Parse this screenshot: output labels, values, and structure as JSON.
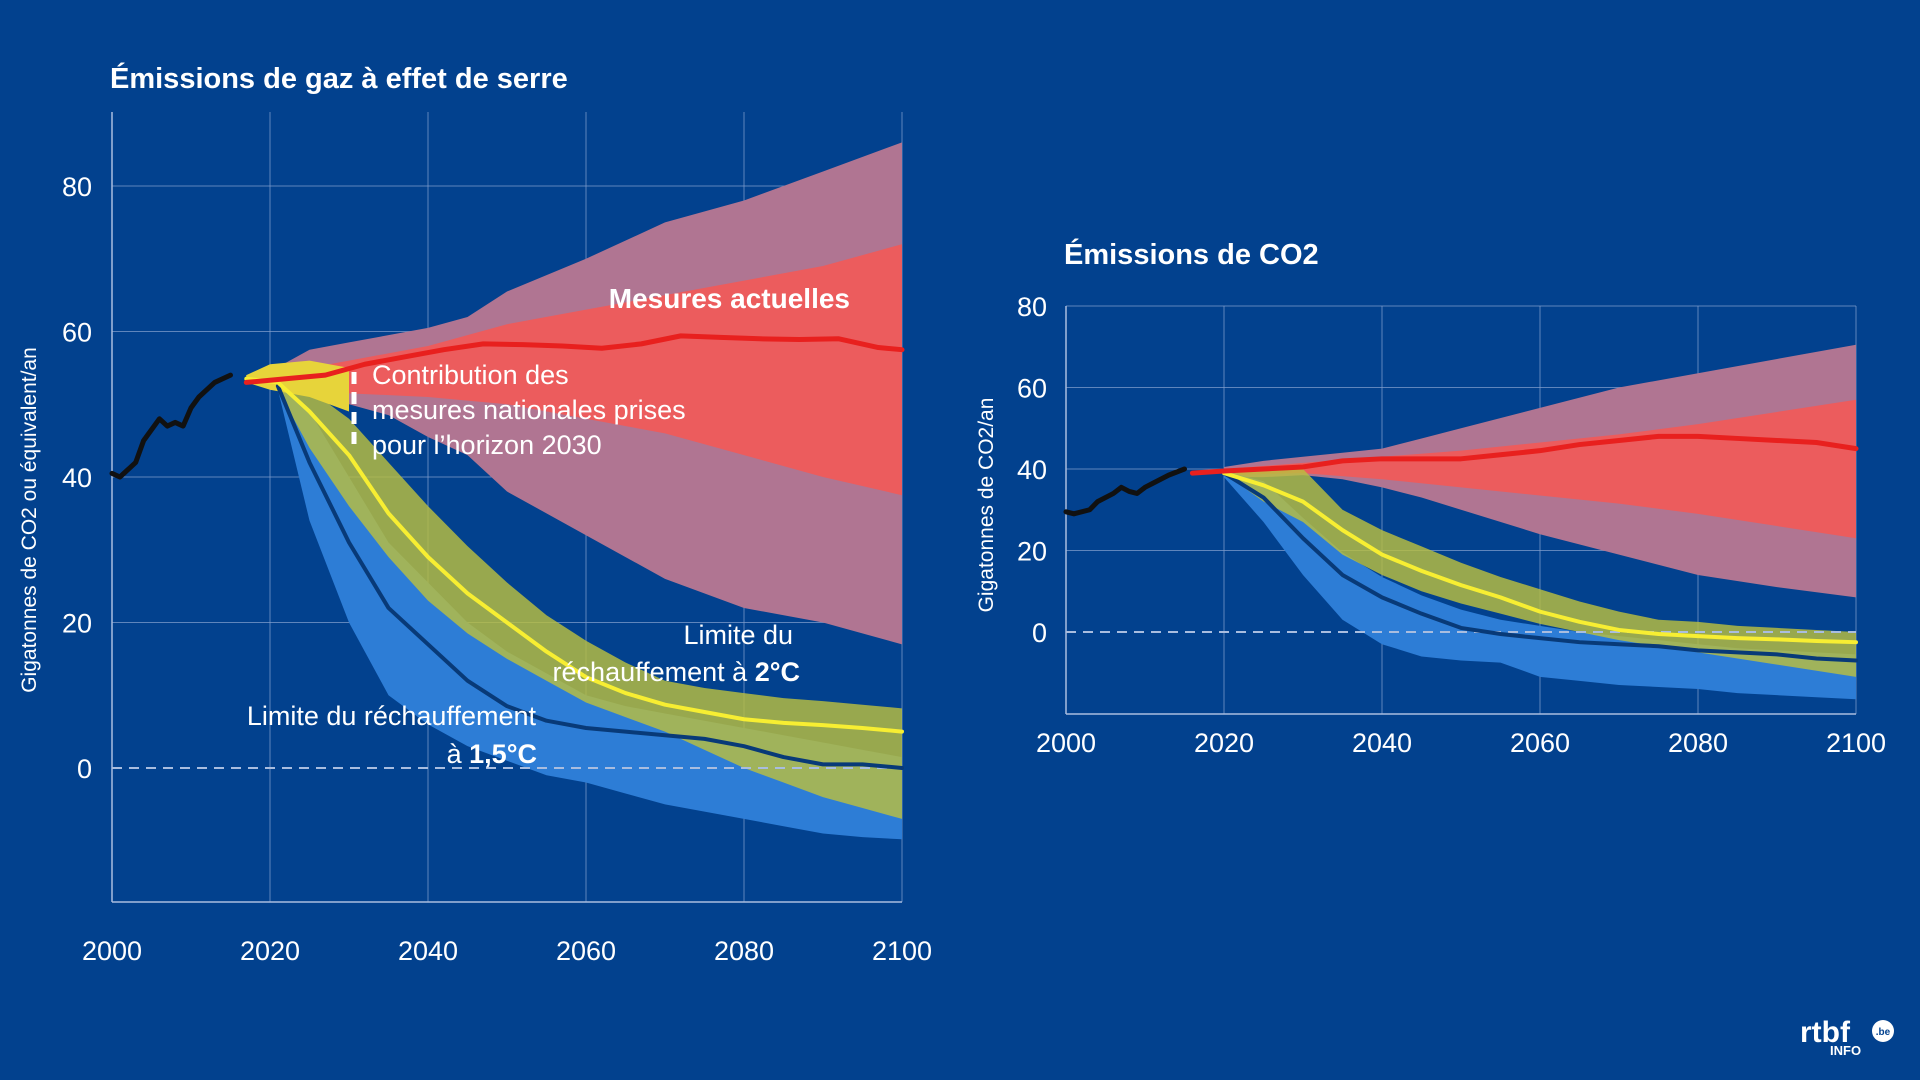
{
  "charts": {
    "left": {
      "title": "Émissions de gaz à effet de serre",
      "ylabel": "Gigatonnes de CO2 ou équivalent/an",
      "xticks": [
        "2000",
        "2020",
        "2040",
        "2060",
        "2080",
        "2100"
      ],
      "yticks": [
        "80",
        "60",
        "40",
        "20",
        "0"
      ],
      "annotations": {
        "mesures": "Mesures actuelles",
        "contribution_1": "Contribution des",
        "contribution_2": "mesures nationales prises",
        "contribution_3": "pour l’horizon 2030",
        "limit2_1": "Limite du",
        "limit2_2": "réchauffement à ",
        "limit2_bold": "2°C",
        "limit15_1": "Limite du réchauffement",
        "limit15_2": "à ",
        "limit15_bold": "1,5°C"
      }
    },
    "right": {
      "title": "Émissions de CO2",
      "ylabel": "Gigatonnes de CO2/an",
      "xticks": [
        "2000",
        "2020",
        "2040",
        "2060",
        "2080",
        "2100"
      ],
      "yticks": [
        "80",
        "60",
        "40",
        "20",
        "0"
      ]
    }
  },
  "logo": {
    "brand": "rtbf",
    "badge": ".be",
    "sub": "INFO"
  },
  "colors": {
    "background": "#02418e",
    "historical": "#111111",
    "current_policies_line": "#e8201e",
    "current_policies_inner": "#ec5c5d",
    "current_policies_outer": "#b07592",
    "ndc_band": "#e7d43a",
    "limit2_line": "#f7ee32",
    "limit2_band": "#b9bf3f",
    "limit15_band": "#2d7dd6",
    "limit15_line": "#083a78",
    "overlap": "#5e9cb7"
  },
  "chart_data": [
    {
      "type": "line",
      "title": "Émissions de gaz à effet de serre",
      "xlabel": "",
      "ylabel": "Gigatonnes de CO2 ou équivalent/an",
      "xlim": [
        2000,
        2100
      ],
      "ylim": [
        -18,
        88
      ],
      "grid": true,
      "series": [
        {
          "name": "",
          "role": "historical",
          "x": [
            2000,
            2001,
            2003,
            2004,
            2006,
            2007,
            2008,
            2009,
            2010,
            2011,
            2013,
            2015
          ],
          "y": [
            40.5,
            40,
            42,
            45,
            48,
            47,
            47.5,
            47,
            49.5,
            51,
            53,
            54
          ]
        },
        {
          "name": "Mesures actuelles",
          "role": "current_line",
          "x": [
            2017,
            2022,
            2027,
            2032,
            2037,
            2042,
            2047,
            2052,
            2057,
            2062,
            2067,
            2072,
            2077,
            2082,
            2087,
            2092,
            2097,
            2100
          ],
          "y": [
            53,
            53.5,
            54,
            55.5,
            56.5,
            57.5,
            58.3,
            58.2,
            58,
            57.7,
            58.3,
            59.4,
            59.2,
            59,
            58.9,
            59,
            57.8,
            57.5
          ]
        },
        {
          "name": "",
          "role": "current_outer_range",
          "x": [
            2020,
            2025,
            2030,
            2035,
            2040,
            2045,
            2050,
            2060,
            2070,
            2080,
            2090,
            2100
          ],
          "upper": [
            54.5,
            57.5,
            58.5,
            59.5,
            60.5,
            62,
            65.5,
            70,
            75,
            78,
            82,
            86
          ],
          "lower": [
            52,
            51.5,
            50,
            48.5,
            45.5,
            43,
            38,
            32,
            26,
            22,
            20,
            17
          ]
        },
        {
          "name": "",
          "role": "current_inner_range",
          "x": [
            2020,
            2030,
            2040,
            2050,
            2060,
            2070,
            2080,
            2090,
            2100
          ],
          "upper": [
            54,
            56,
            58,
            61,
            63,
            65,
            67,
            69,
            72
          ],
          "lower": [
            52.5,
            51.5,
            51,
            50,
            48,
            46,
            43,
            40,
            37.5
          ]
        },
        {
          "name": "",
          "role": "ndc_range_2030",
          "x": [
            2017,
            2020,
            2025,
            2030
          ],
          "upper": [
            54,
            55.5,
            56,
            55
          ],
          "lower": [
            53,
            52,
            51,
            49
          ]
        },
        {
          "name": "Limite du réchauffement à 2°C",
          "role": "limit2_line",
          "x": [
            2017,
            2021,
            2025,
            2030,
            2035,
            2040,
            2045,
            2050,
            2055,
            2060,
            2065,
            2070,
            2075,
            2080,
            2085,
            2090,
            2095,
            2100
          ],
          "y": [
            53.5,
            53,
            49,
            43,
            35,
            29,
            24,
            20,
            16,
            12.5,
            10.3,
            8.7,
            7.7,
            6.7,
            6.2,
            5.9,
            5.5,
            5
          ]
        },
        {
          "name": "",
          "role": "limit2_range",
          "x": [
            2017,
            2021,
            2025,
            2030,
            2035,
            2040,
            2045,
            2050,
            2055,
            2060,
            2065,
            2070,
            2075,
            2080,
            2085,
            2090,
            2095,
            2100
          ],
          "upper": [
            54,
            54,
            52,
            48,
            42,
            36,
            30.5,
            25.5,
            21,
            17.5,
            14.5,
            12,
            11,
            10.3,
            9.6,
            9.2,
            8.7,
            8.2
          ],
          "lower": [
            53,
            52,
            44,
            36,
            29,
            23,
            18.5,
            15,
            12,
            9,
            7,
            5,
            2.5,
            0,
            -2,
            -4,
            -5.5,
            -7
          ]
        },
        {
          "name": "Limite du réchauffement à 1,5°C",
          "role": "limit15_line",
          "x": [
            2021,
            2025,
            2030,
            2035,
            2040,
            2045,
            2050,
            2055,
            2060,
            2065,
            2070,
            2075,
            2080,
            2085,
            2090,
            2095,
            2100
          ],
          "y": [
            52.5,
            42,
            31,
            22,
            17,
            12,
            8.5,
            6.5,
            5.5,
            5,
            4.5,
            4,
            3,
            1.5,
            0.5,
            0.5,
            0
          ]
        },
        {
          "name": "",
          "role": "limit15_range",
          "x": [
            2021,
            2025,
            2030,
            2035,
            2040,
            2045,
            2050,
            2055,
            2060,
            2065,
            2070,
            2075,
            2080,
            2085,
            2090,
            2095,
            2100
          ],
          "upper": [
            53.5,
            49,
            40,
            31,
            25.5,
            20,
            16,
            13,
            10,
            8.5,
            7.5,
            6.5,
            5.5,
            4.5,
            3.5,
            2.5,
            1.5
          ],
          "lower": [
            52,
            34,
            20,
            10,
            6,
            3,
            1,
            -1,
            -2,
            -3.5,
            -5,
            -6,
            -7,
            -8,
            -9,
            -9.5,
            -9.8
          ]
        }
      ]
    },
    {
      "type": "line",
      "title": "Émissions de CO2",
      "xlabel": "",
      "ylabel": "Gigatonnes de CO2/an",
      "xlim": [
        2000,
        2100
      ],
      "ylim": [
        -20,
        80
      ],
      "grid": true,
      "series": [
        {
          "name": "",
          "role": "historical",
          "x": [
            2000,
            2001,
            2003,
            2004,
            2006,
            2007,
            2008,
            2009,
            2010,
            2011,
            2013,
            2015
          ],
          "y": [
            29.5,
            29,
            30,
            32,
            34,
            35.5,
            34.5,
            34,
            35.5,
            36.5,
            38.5,
            40
          ]
        },
        {
          "name": "",
          "role": "current_line",
          "x": [
            2016,
            2020,
            2030,
            2035,
            2040,
            2045,
            2050,
            2055,
            2060,
            2065,
            2070,
            2075,
            2080,
            2085,
            2090,
            2095,
            2100
          ],
          "y": [
            39,
            39.5,
            40.5,
            42,
            42.5,
            42.5,
            42.5,
            43.5,
            44.5,
            46,
            47,
            48,
            48,
            47.5,
            47,
            46.5,
            45
          ]
        },
        {
          "name": "",
          "role": "current_outer_range",
          "x": [
            2020,
            2025,
            2030,
            2035,
            2040,
            2045,
            2050,
            2060,
            2070,
            2080,
            2090,
            2100
          ],
          "upper": [
            40.5,
            42,
            43,
            44,
            45,
            47.5,
            50,
            55,
            60,
            63.5,
            67,
            70.5
          ],
          "lower": [
            38,
            38,
            38.5,
            37.5,
            35.5,
            33,
            30,
            24,
            19,
            14,
            11,
            8.5
          ]
        },
        {
          "name": "",
          "role": "current_inner_range",
          "x": [
            2020,
            2030,
            2040,
            2050,
            2060,
            2070,
            2080,
            2090,
            2100
          ],
          "upper": [
            40,
            41.5,
            43,
            44.5,
            46.5,
            48.5,
            51,
            54,
            57
          ],
          "lower": [
            38.5,
            39,
            37.5,
            35.5,
            33.5,
            31.5,
            29,
            26,
            23
          ]
        },
        {
          "name": "",
          "role": "limit2_line",
          "x": [
            2020,
            2025,
            2030,
            2035,
            2040,
            2045,
            2050,
            2055,
            2060,
            2065,
            2070,
            2075,
            2080,
            2085,
            2090,
            2095,
            2100
          ],
          "y": [
            39,
            36,
            32,
            25,
            19,
            15,
            11.5,
            8.5,
            5,
            2.5,
            0.5,
            -0.5,
            -1,
            -1.5,
            -1.8,
            -2.2,
            -2.5
          ]
        },
        {
          "name": "",
          "role": "limit2_range",
          "x": [
            2020,
            2025,
            2030,
            2035,
            2040,
            2045,
            2050,
            2055,
            2060,
            2065,
            2070,
            2075,
            2080,
            2085,
            2090,
            2095,
            2100
          ],
          "upper": [
            39.5,
            39.5,
            40,
            30,
            25,
            21,
            17,
            13.5,
            10.5,
            7.5,
            5,
            3,
            2.5,
            1.5,
            1,
            0.5,
            0
          ],
          "lower": [
            39,
            32,
            27,
            19,
            14,
            10,
            7,
            4.5,
            2,
            0,
            -2,
            -3.5,
            -5,
            -6.5,
            -8,
            -9.5,
            -11
          ]
        },
        {
          "name": "",
          "role": "limit15_line",
          "x": [
            2020,
            2025,
            2030,
            2035,
            2040,
            2045,
            2050,
            2055,
            2060,
            2065,
            2070,
            2075,
            2080,
            2085,
            2090,
            2095,
            2100
          ],
          "y": [
            39,
            33,
            23,
            14,
            8.5,
            4.5,
            1,
            -0.5,
            -1.5,
            -2.5,
            -3,
            -3.5,
            -4.5,
            -5,
            -5.5,
            -6.5,
            -7
          ]
        },
        {
          "name": "",
          "role": "limit15_range",
          "x": [
            2020,
            2025,
            2030,
            2035,
            2040,
            2045,
            2050,
            2055,
            2060,
            2065,
            2070,
            2075,
            2080,
            2085,
            2090,
            2095,
            2100
          ],
          "upper": [
            39.5,
            37,
            28,
            19.5,
            13.5,
            9,
            5.5,
            3,
            1.5,
            0,
            -1,
            -2,
            -3,
            -4,
            -4.5,
            -5,
            -5.5
          ],
          "lower": [
            38,
            27,
            14,
            3,
            -3,
            -6,
            -7,
            -7.5,
            -11,
            -12,
            -13,
            -13.5,
            -14,
            -15,
            -15.5,
            -16,
            -16.5
          ]
        }
      ]
    }
  ]
}
